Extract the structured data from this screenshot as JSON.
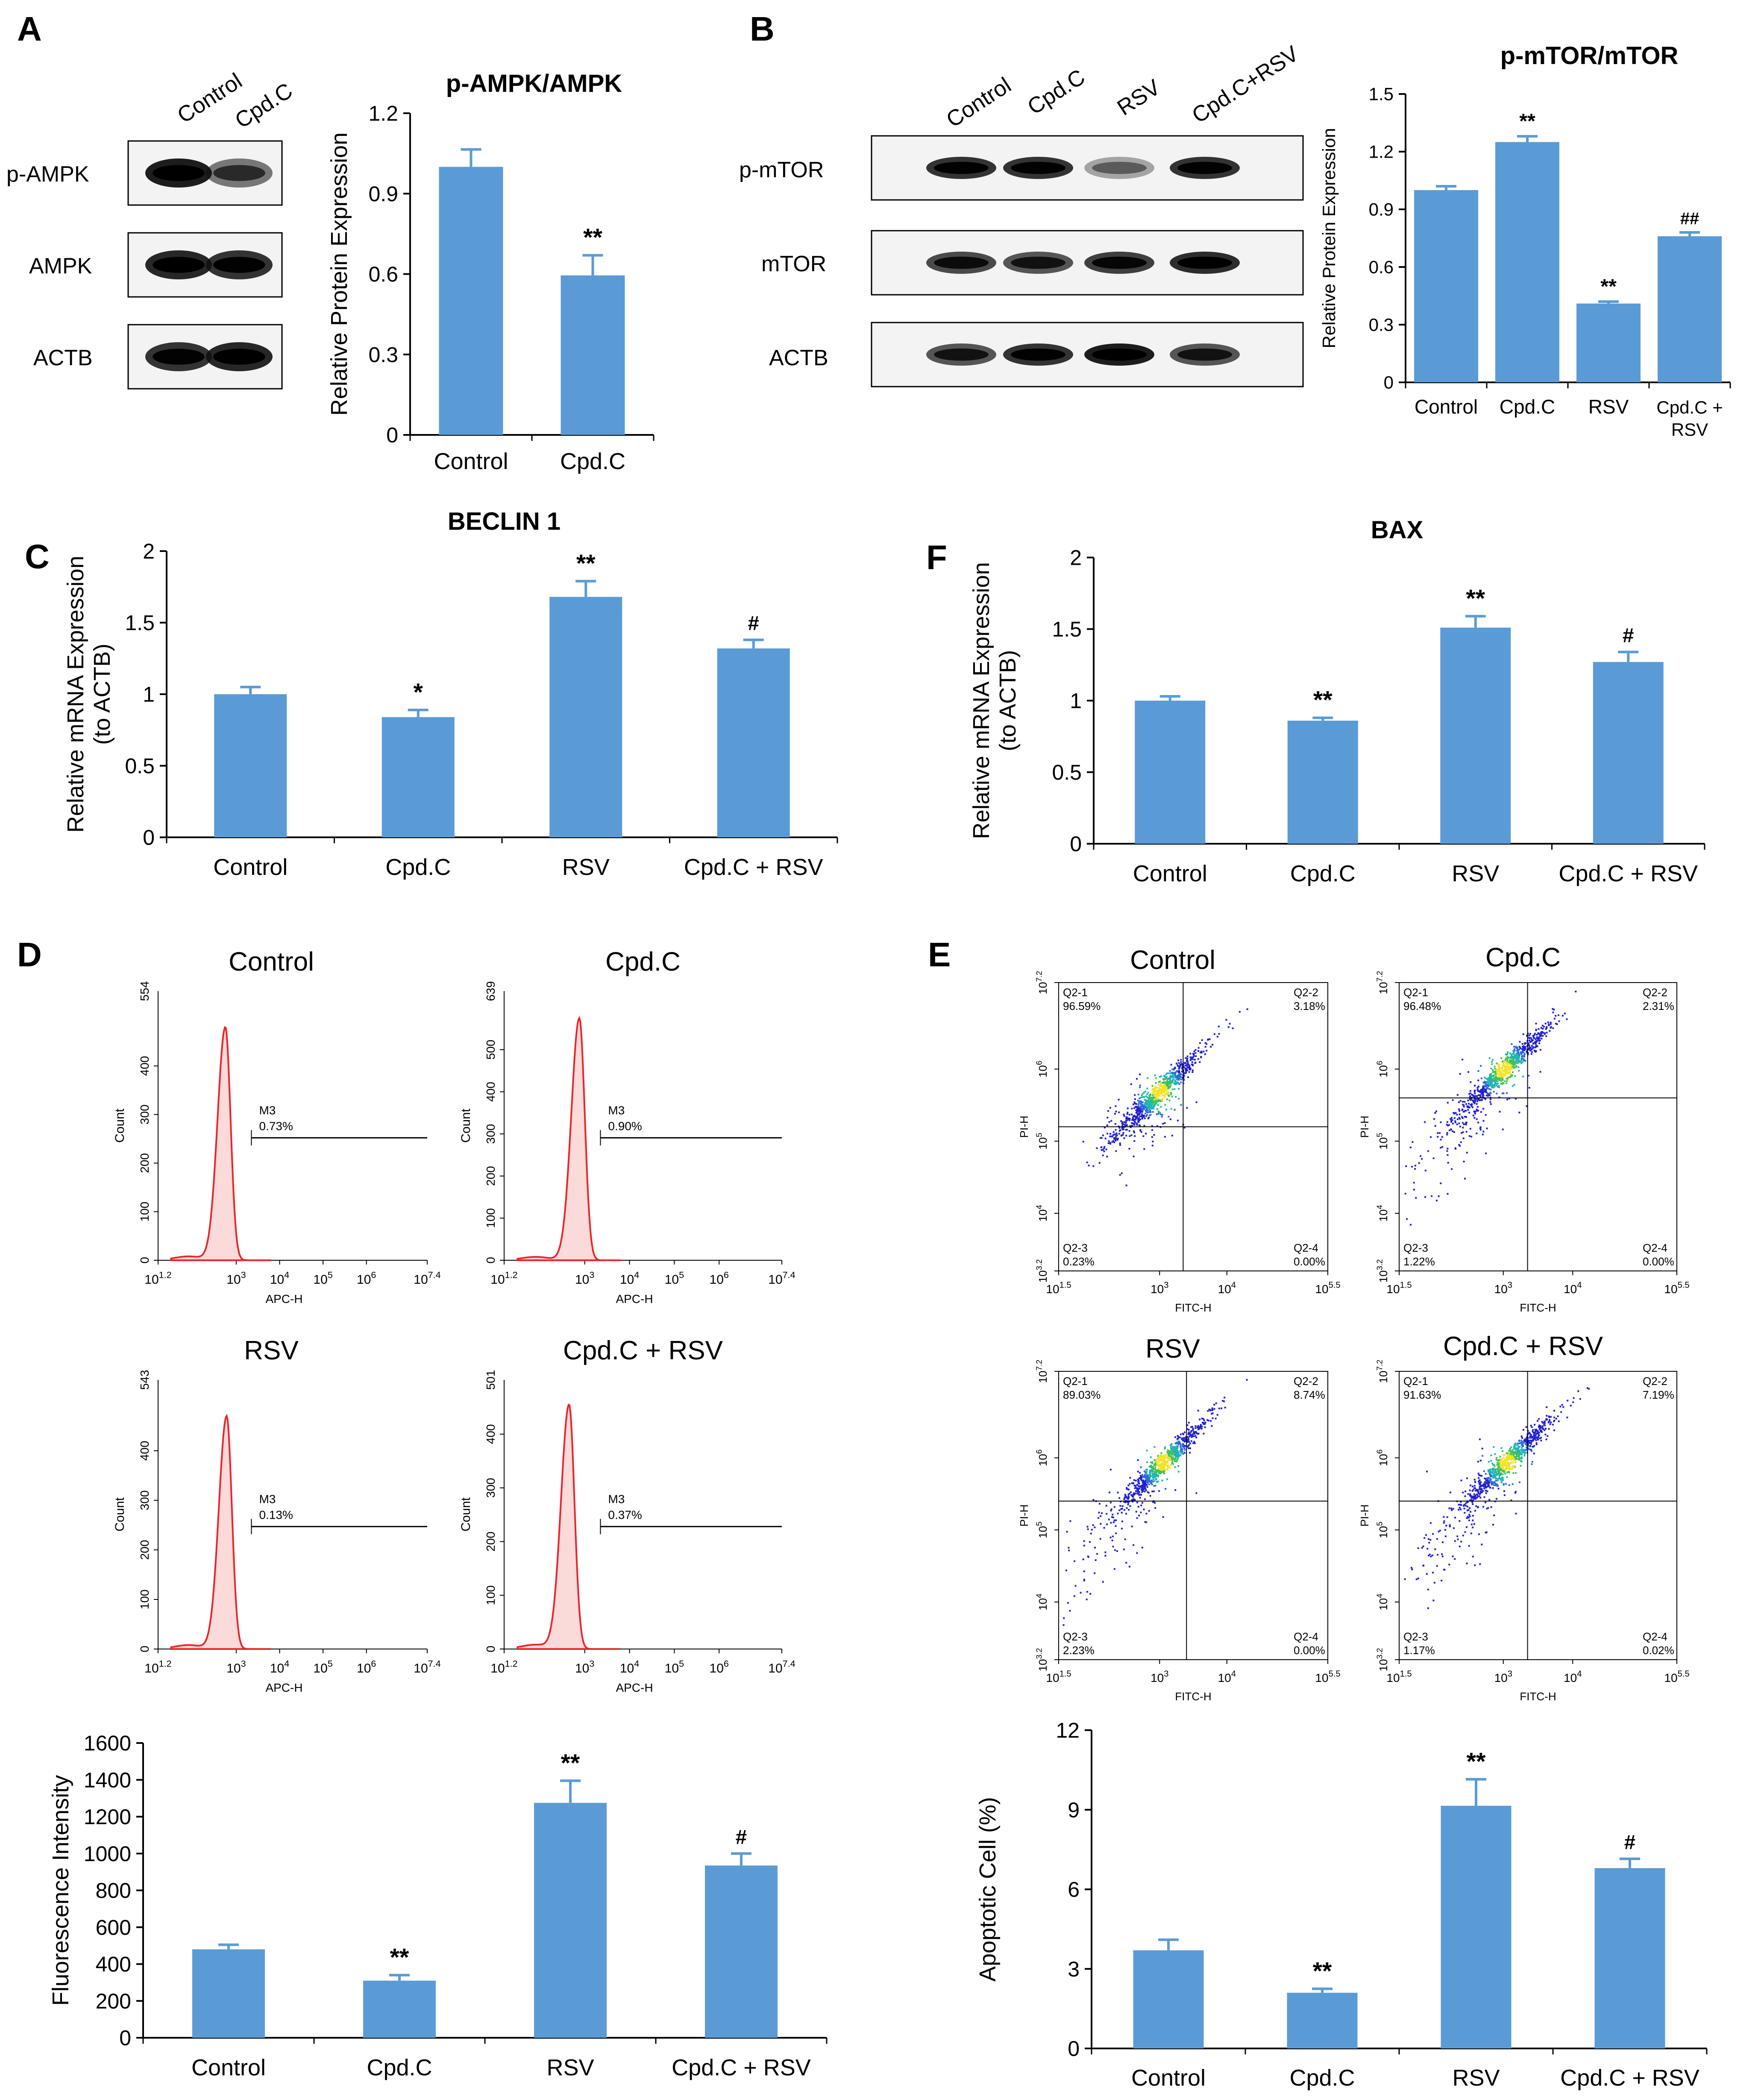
{
  "figure": {
    "panel_letters": [
      "A",
      "B",
      "C",
      "D",
      "E",
      "F"
    ],
    "colors": {
      "bar": "#5b9bd5",
      "error": "#5b9bd5",
      "axis": "#000000",
      "histogram": "#e8262b",
      "histogram_fill": "#fbdada"
    }
  },
  "blots": {
    "A": {
      "lanes": [
        "Control",
        "Cpd.C"
      ],
      "rows": [
        "p-AMPK",
        "AMPK",
        "ACTB"
      ]
    },
    "B": {
      "lanes": [
        "Control",
        "Cpd.C",
        "RSV",
        "Cpd.C+RSV"
      ],
      "rows": [
        "p-mTOR",
        "mTOR",
        "ACTB"
      ]
    }
  },
  "chart_data": [
    {
      "id": "A",
      "type": "bar",
      "title": "p-AMPK/AMPK",
      "categories": [
        "Control",
        "Cpd.C"
      ],
      "values": [
        1.0,
        0.595
      ],
      "errors": [
        0.065,
        0.075
      ],
      "annotations": [
        "",
        "**"
      ],
      "ylabel": "Relative Protein Expression",
      "xlabel": "",
      "ylim": [
        0,
        1.2
      ],
      "yticks": [
        0,
        0.3,
        0.6,
        0.9,
        1.2
      ],
      "ytick_labels": [
        "0",
        "0.3",
        "0.6",
        "0.9",
        "1.2"
      ]
    },
    {
      "id": "B",
      "type": "bar",
      "title": "p-mTOR/mTOR",
      "categories": [
        "Control",
        "Cpd.C",
        "RSV",
        "Cpd.C + RSV"
      ],
      "values": [
        1.0,
        1.25,
        0.41,
        0.76
      ],
      "errors": [
        0.02,
        0.03,
        0.01,
        0.02
      ],
      "annotations": [
        "",
        "**",
        "**",
        "##"
      ],
      "ylabel": "Relative Protein Expression",
      "xlabel": "",
      "ylim": [
        0,
        1.5
      ],
      "yticks": [
        0,
        0.3,
        0.6,
        0.9,
        1.2,
        1.5
      ],
      "ytick_labels": [
        "0",
        "0.3",
        "0.6",
        "0.9",
        "1.2",
        "1.5"
      ]
    },
    {
      "id": "C",
      "type": "bar",
      "title": "BECLIN 1",
      "categories": [
        "Control",
        "Cpd.C",
        "RSV",
        "Cpd.C + RSV"
      ],
      "values": [
        1.0,
        0.84,
        1.68,
        1.32
      ],
      "errors": [
        0.05,
        0.05,
        0.11,
        0.06
      ],
      "annotations": [
        "",
        "*",
        "**",
        "#"
      ],
      "ylabel": "Relative mRNA Expression",
      "ylabel2": "(to ACTB)",
      "xlabel": "",
      "ylim": [
        0,
        2
      ],
      "yticks": [
        0,
        0.5,
        1,
        1.5,
        2
      ],
      "ytick_labels": [
        "0",
        "0.5",
        "1",
        "1.5",
        "2"
      ]
    },
    {
      "id": "E",
      "type": "bar",
      "title": "BAX",
      "categories": [
        "Control",
        "Cpd.C",
        "RSV",
        "Cpd.C + RSV"
      ],
      "values": [
        1.0,
        0.86,
        1.51,
        1.27
      ],
      "errors": [
        0.03,
        0.02,
        0.08,
        0.07
      ],
      "annotations": [
        "",
        "**",
        "**",
        "#"
      ],
      "ylabel": "Relative mRNA Expression",
      "ylabel2": "(to ACTB)",
      "xlabel": "",
      "ylim": [
        0,
        2
      ],
      "yticks": [
        0,
        0.5,
        1,
        1.5,
        2
      ],
      "ytick_labels": [
        "0",
        "0.5",
        "1",
        "1.5",
        "2"
      ]
    },
    {
      "id": "D_bar",
      "type": "bar",
      "title": "",
      "categories": [
        "Control",
        "Cpd.C",
        "RSV",
        "Cpd.C + RSV"
      ],
      "values": [
        480,
        310,
        1275,
        935
      ],
      "errors": [
        25,
        30,
        120,
        65
      ],
      "annotations": [
        "",
        "**",
        "**",
        "#"
      ],
      "ylabel": "Fluorescence Intensity",
      "xlabel": "",
      "ylim": [
        0,
        1600
      ],
      "yticks": [
        0,
        200,
        400,
        600,
        800,
        1000,
        1200,
        1400,
        1600
      ],
      "ytick_labels": [
        "0",
        "200",
        "400",
        "600",
        "800",
        "1000",
        "1200",
        "1400",
        "1600"
      ]
    },
    {
      "id": "F_bar",
      "type": "bar",
      "title": "",
      "categories": [
        "Control",
        "Cpd.C",
        "RSV",
        "Cpd.C + RSV"
      ],
      "values": [
        3.7,
        2.1,
        9.15,
        6.8
      ],
      "errors": [
        0.4,
        0.15,
        1.0,
        0.35
      ],
      "annotations": [
        "",
        "**",
        "**",
        "#"
      ],
      "ylabel": "Apoptotic Cell (%)",
      "xlabel": "",
      "ylim": [
        0,
        12
      ],
      "yticks": [
        0,
        3,
        6,
        9,
        12
      ],
      "ytick_labels": [
        "0",
        "3",
        "6",
        "9",
        "12"
      ]
    }
  ],
  "histograms": {
    "xlabel": "APC-H",
    "ylabel": "Count",
    "gate_label": "M3",
    "xtick_labels": [
      [
        "10",
        "1.2"
      ],
      [
        "10",
        "3"
      ],
      [
        "10",
        "4"
      ],
      [
        "10",
        "5"
      ],
      [
        "10",
        "6"
      ],
      [
        "10",
        "7.4"
      ]
    ],
    "xtick_positions": [
      1.2,
      3,
      4,
      5,
      6,
      7.4
    ],
    "panels": [
      {
        "title": "Control",
        "ymax": 554,
        "yticks": [
          0,
          100,
          200,
          300,
          400
        ],
        "ymax_label": "554",
        "peak_log": 2.75,
        "peak_count": 480,
        "gate_pct": "0.73%"
      },
      {
        "title": "Cpd.C",
        "ymax": 639,
        "yticks": [
          0,
          100,
          200,
          300,
          400,
          500
        ],
        "ymax_label": "639",
        "peak_log": 2.88,
        "peak_count": 575,
        "gate_pct": "0.90%"
      },
      {
        "title": "RSV",
        "ymax": 543,
        "yticks": [
          0,
          100,
          200,
          300,
          400
        ],
        "ymax_label": "543",
        "peak_log": 2.78,
        "peak_count": 470,
        "gate_pct": "0.13%"
      },
      {
        "title": "Cpd.C + RSV",
        "ymax": 501,
        "yticks": [
          0,
          100,
          200,
          300,
          400
        ],
        "ymax_label": "501",
        "peak_log": 2.65,
        "peak_count": 455,
        "gate_pct": "0.37%"
      }
    ]
  },
  "scatters": {
    "xlabel": "FITC-H",
    "ylabel": "PI-H",
    "xtick_labels": [
      [
        "10",
        "1.5"
      ],
      [
        "10",
        "3"
      ],
      [
        "10",
        "4"
      ],
      [
        "10",
        "5.5"
      ]
    ],
    "xtick_positions": [
      1.5,
      3,
      4,
      5.5
    ],
    "ytick_labels": [
      [
        "10",
        "3.2"
      ],
      [
        "10",
        "4"
      ],
      [
        "10",
        "5"
      ],
      [
        "10",
        "6"
      ],
      [
        "10",
        "7.2"
      ]
    ],
    "ytick_positions": [
      3.2,
      4,
      5,
      6,
      7.2
    ],
    "quadrant_names": [
      "Q2-1",
      "Q2-2",
      "Q2-3",
      "Q2-4"
    ],
    "panels": [
      {
        "title": "Control",
        "gate_x": 3.35,
        "gate_y": 5.2,
        "q1": "96.59%",
        "q2": "3.18%",
        "q3": "0.23%",
        "q4": "0.00%",
        "spread": 0.4,
        "cluster_x": 3.0,
        "cluster_y": 5.7
      },
      {
        "title": "Cpd.C",
        "gate_x": 3.35,
        "gate_y": 5.6,
        "q1": "96.48%",
        "q2": "2.31%",
        "q3": "1.22%",
        "q4": "0.00%",
        "spread": 0.9,
        "cluster_x": 3.0,
        "cluster_y": 6.0
      },
      {
        "title": "RSV",
        "gate_x": 3.4,
        "gate_y": 5.4,
        "q1": "89.03%",
        "q2": "8.74%",
        "q3": "2.23%",
        "q4": "0.00%",
        "spread": 1.3,
        "cluster_x": 3.05,
        "cluster_y": 5.95
      },
      {
        "title": "Cpd.C + RSV",
        "gate_x": 3.35,
        "gate_y": 5.4,
        "q1": "91.63%",
        "q2": "7.19%",
        "q3": "1.17%",
        "q4": "0.02%",
        "spread": 1.1,
        "cluster_x": 3.05,
        "cluster_y": 5.95
      }
    ]
  }
}
